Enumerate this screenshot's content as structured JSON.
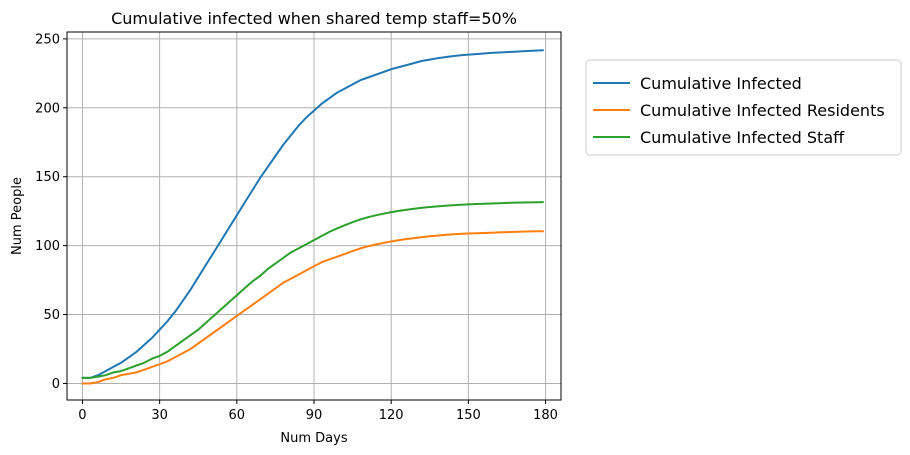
{
  "chart_data": {
    "type": "line",
    "title": "Cumulative infected when shared temp staff=50%",
    "xlabel": "Num Days",
    "ylabel": "Num People",
    "xlim": [
      -6,
      186
    ],
    "ylim": [
      -12,
      255
    ],
    "xticks": [
      0,
      30,
      60,
      90,
      120,
      150,
      180
    ],
    "yticks": [
      0,
      50,
      100,
      150,
      200,
      250
    ],
    "grid": true,
    "legend_position": "outside-right",
    "x": [
      0,
      3,
      6,
      9,
      12,
      15,
      18,
      21,
      24,
      27,
      30,
      33,
      36,
      39,
      42,
      45,
      48,
      51,
      54,
      57,
      60,
      63,
      66,
      69,
      72,
      75,
      78,
      81,
      84,
      87,
      90,
      93,
      96,
      99,
      102,
      105,
      108,
      111,
      114,
      117,
      120,
      123,
      126,
      129,
      132,
      135,
      138,
      141,
      144,
      147,
      150,
      153,
      156,
      159,
      162,
      165,
      168,
      171,
      174,
      177,
      179
    ],
    "series": [
      {
        "name": "Cumulative Infected",
        "color": "#1f77b4",
        "values": [
          4,
          4,
          6,
          9,
          12,
          15,
          19,
          23,
          28,
          33,
          39,
          45,
          52,
          60,
          68,
          77,
          86,
          95,
          104,
          113,
          122,
          131,
          140,
          149,
          157,
          165,
          173,
          180,
          187,
          193,
          198,
          203,
          207,
          211,
          214,
          217,
          220,
          222,
          224,
          226,
          228,
          229.5,
          231,
          232.5,
          234,
          235,
          236,
          236.8,
          237.5,
          238.1,
          238.6,
          239,
          239.4,
          239.8,
          240.1,
          240.4,
          240.7,
          241,
          241.3,
          241.6,
          241.8
        ]
      },
      {
        "name": "Cumulative Infected Residents",
        "color": "#ff7f0e",
        "values": [
          0,
          0,
          1,
          3,
          4,
          6,
          7,
          8,
          10,
          12,
          14,
          16,
          19,
          22,
          25,
          29,
          33,
          37,
          41,
          45,
          49,
          53,
          57,
          61,
          65,
          69,
          73,
          76,
          79,
          82,
          85,
          88,
          90,
          92,
          94,
          96,
          98,
          99.5,
          100.8,
          102,
          103,
          104,
          104.8,
          105.5,
          106.2,
          106.8,
          107.3,
          107.8,
          108.2,
          108.5,
          108.8,
          109,
          109.2,
          109.4,
          109.6,
          109.8,
          110,
          110.2,
          110.3,
          110.4,
          110.5
        ]
      },
      {
        "name": "Cumulative Infected Staff",
        "color": "#2ca02c",
        "values": [
          4,
          4,
          5,
          6,
          8,
          9,
          11,
          13,
          15,
          18,
          20,
          23,
          27,
          31,
          35,
          39,
          44,
          49,
          54,
          59,
          64,
          69,
          74,
          78,
          83,
          87,
          91,
          95,
          98,
          101,
          104,
          107,
          110,
          112.5,
          114.8,
          117,
          119,
          120.6,
          122,
          123.2,
          124.3,
          125.2,
          126,
          126.8,
          127.5,
          128,
          128.5,
          128.9,
          129.3,
          129.6,
          129.9,
          130.2,
          130.4,
          130.6,
          130.8,
          131,
          131.2,
          131.3,
          131.4,
          131.5,
          131.6
        ]
      }
    ]
  }
}
